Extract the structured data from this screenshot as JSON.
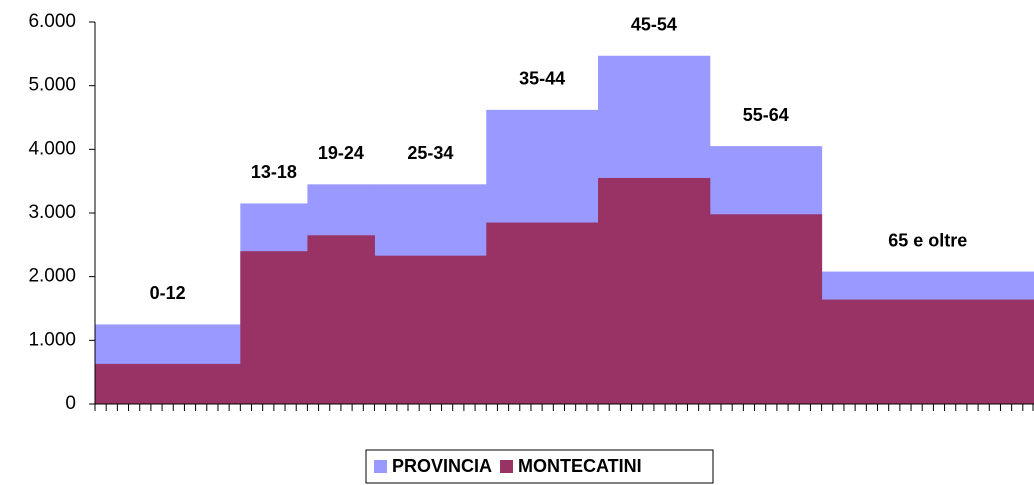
{
  "chart_data": {
    "type": "histogram",
    "categories": [
      "0-12",
      "13-18",
      "19-24",
      "25-34",
      "35-44",
      "45-54",
      "55-64",
      "65 e oltre"
    ],
    "bins": [
      0,
      13,
      19,
      25,
      35,
      45,
      55,
      65,
      84
    ],
    "series": [
      {
        "name": "PROVINCIA",
        "color": "#9999ff",
        "values": [
          1250,
          3150,
          3450,
          3450,
          4620,
          5470,
          4050,
          2080
        ]
      },
      {
        "name": "MONTECATINI",
        "color": "#993366",
        "values": [
          630,
          2400,
          2650,
          2330,
          2850,
          3550,
          2980,
          1640
        ]
      }
    ],
    "xlim": [
      0,
      84
    ],
    "xticks": [
      0,
      1,
      2,
      3,
      4,
      5,
      6,
      7,
      8,
      9,
      10,
      11,
      12,
      13,
      14,
      15,
      16,
      17,
      18,
      19,
      20,
      21,
      22,
      23,
      24,
      25,
      26,
      27,
      28,
      29,
      30,
      31,
      32,
      33,
      34,
      35,
      36,
      37,
      38,
      39,
      40,
      41,
      42,
      43,
      44,
      45,
      46,
      47,
      48,
      49,
      50,
      51,
      52,
      53,
      54,
      55,
      56,
      57,
      58,
      59,
      60,
      61,
      62,
      63,
      64,
      65,
      66,
      67,
      68,
      69,
      70,
      71,
      72,
      73,
      74,
      75,
      76,
      77,
      78,
      79,
      80,
      81,
      82,
      83,
      84
    ],
    "ylim": [
      0,
      6000
    ],
    "yticks": [
      0,
      {
        "value": 1000,
        "label": "1.000"
      },
      {
        "value": 2000,
        "label": "2.000"
      },
      {
        "value": 3000,
        "label": "3.000"
      },
      {
        "value": 4000,
        "label": "4.000"
      },
      {
        "value": 5000,
        "label": "5.000"
      },
      {
        "value": 6000,
        "label": "6.000"
      }
    ],
    "grid": false,
    "legend": "bottom"
  }
}
